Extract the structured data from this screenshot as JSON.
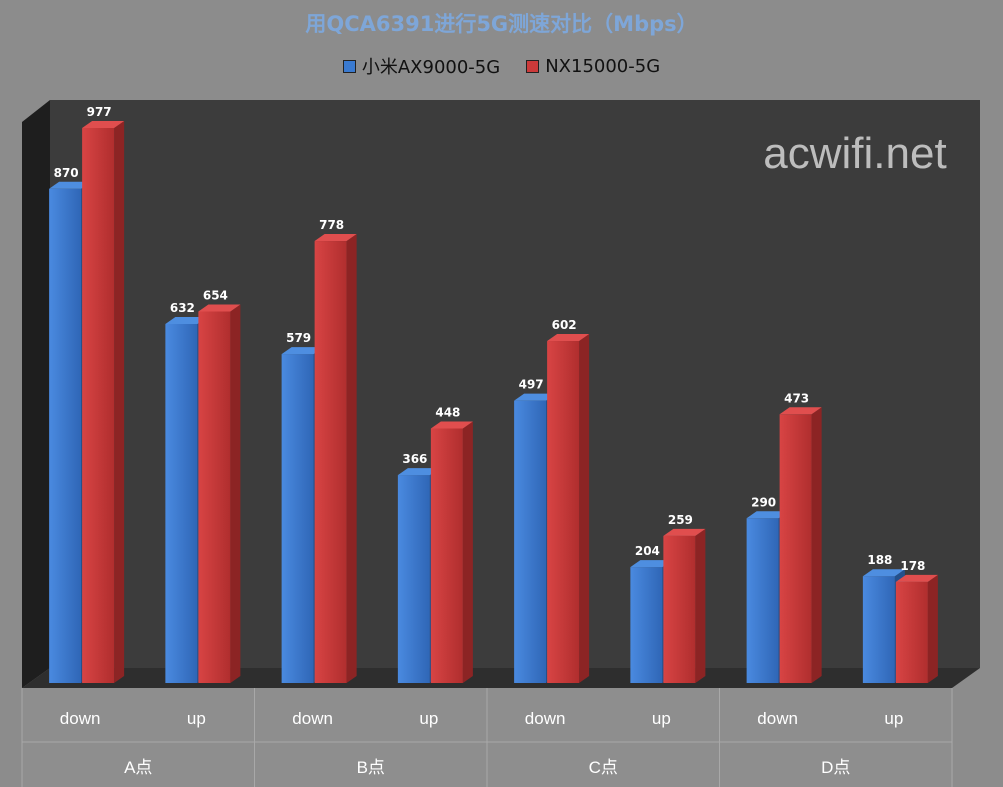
{
  "chart_data": {
    "type": "bar",
    "title": "用QCA6391进行5G测速对比（Mbps）",
    "watermark": "acwifi.net",
    "groups": [
      "A点",
      "B点",
      "C点",
      "D点"
    ],
    "categories": [
      "down",
      "up",
      "down",
      "up",
      "down",
      "up",
      "down",
      "up"
    ],
    "series": [
      {
        "name": "小米AX9000-5G",
        "values": [
          870,
          632,
          579,
          366,
          497,
          204,
          290,
          188
        ]
      },
      {
        "name": "NX15000-5G",
        "values": [
          977,
          654,
          778,
          448,
          602,
          259,
          473,
          178
        ]
      }
    ],
    "ylim": [
      0,
      1000
    ],
    "grid": false,
    "legend_position": "top",
    "colors": {
      "series": [
        "#3a7ad0",
        "#cc3a3a"
      ],
      "series_side": [
        "#24508c",
        "#8c2424"
      ],
      "series_top": [
        "#4e8ee0",
        "#e04e4e"
      ],
      "plot_back": "#3c3c3c",
      "plot_floor": "#2e2e2e",
      "plot_wall_left": "#1e1e1e",
      "page_bg": "#8c8c8c",
      "axis_area": "#8e8e8e"
    }
  }
}
